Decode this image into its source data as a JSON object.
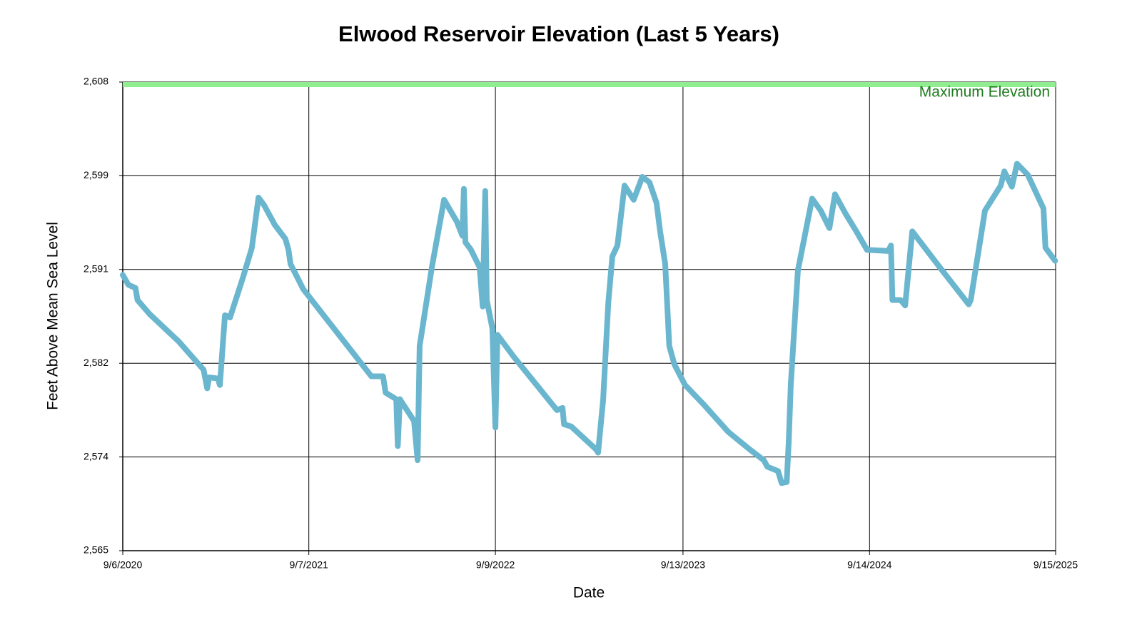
{
  "chart_data": {
    "type": "line",
    "title": "Elwood Reservoir Elevation (Last 5 Years)",
    "x_label": "Date",
    "y_label": "Feet Above Mean Sea Level",
    "xlim": [
      "9/6/2020",
      "9/15/2025"
    ],
    "xticks": [
      "9/6/2020",
      "9/7/2021",
      "9/9/2022",
      "9/13/2023",
      "9/14/2024",
      "9/15/2025"
    ],
    "ylim": [
      2565,
      2608
    ],
    "yticks": [
      {
        "value": 2565,
        "label": "2,565"
      },
      {
        "value": 2573.6,
        "label": "2,574"
      },
      {
        "value": 2582.2,
        "label": "2,582"
      },
      {
        "value": 2590.8,
        "label": "2,591"
      },
      {
        "value": 2599.4,
        "label": "2,599"
      },
      {
        "value": 2608,
        "label": "2,608"
      }
    ],
    "grid": true,
    "annotation": {
      "text": "Maximum Elevation",
      "value": 2608,
      "color": "#90ee90",
      "text_color": "#1e7b1e"
    },
    "x": [
      "9/6/2020",
      "9/17/2020",
      "10/1/2020",
      "10/5/2020",
      "10/29/2020",
      "12/25/2020",
      "2/12/2021",
      "2/19/2021",
      "2/23/2021",
      "3/12/2021",
      "3/16/2021",
      "3/26/2021",
      "4/5/2021",
      "4/30/2021",
      "5/18/2021",
      "5/31/2021",
      "6/11/2021",
      "7/2/2021",
      "7/23/2021",
      "7/29/2021",
      "8/2/2021",
      "8/27/2021",
      "10/1/2021",
      "1/8/2022",
      "1/31/2022",
      "2/5/2022",
      "2/26/2022",
      "3/1/2022",
      "3/5/2022",
      "4/2/2022",
      "4/9/2022",
      "4/13/2022",
      "5/7/2022",
      "5/31/2022",
      "6/25/2022",
      "7/6/2022",
      "7/9/2022",
      "7/12/2022",
      "7/23/2022",
      "8/9/2022",
      "8/15/2022",
      "8/20/2022",
      "8/23/2022",
      "9/3/2022",
      "9/9/2022",
      "9/13/2022",
      "10/15/2022",
      "1/8/2023",
      "1/19/2023",
      "1/22/2023",
      "2/5/2023",
      "3/26/2023",
      "3/30/2023",
      "4/9/2023",
      "4/19/2023",
      "4/27/2023",
      "5/7/2023",
      "5/21/2023",
      "6/8/2023",
      "6/25/2023",
      "7/9/2023",
      "7/23/2023",
      "7/30/2023",
      "8/9/2023",
      "8/17/2023",
      "8/27/2023",
      "9/17/2023",
      "10/22/2023",
      "12/11/2023",
      "1/22/2024",
      "2/19/2024",
      "2/26/2024",
      "3/18/2024",
      "3/25/2024",
      "4/4/2024",
      "4/8/2024",
      "4/12/2024",
      "4/26/2024",
      "5/24/2024",
      "6/10/2024",
      "6/27/2024",
      "7/8/2024",
      "7/29/2024",
      "8/19/2024",
      "9/9/2024",
      "10/21/2024",
      "10/26/2024",
      "10/29/2024",
      "11/14/2024",
      "11/23/2024",
      "12/7/2024",
      "2/4/2025",
      "3/28/2025",
      "4/1/2025",
      "4/29/2025",
      "5/30/2025",
      "6/6/2025",
      "6/21/2025",
      "7/1/2025",
      "7/22/2025",
      "8/12/2025",
      "8/22/2025",
      "8/26/2025",
      "9/14/2025"
    ],
    "series": [
      {
        "color": "#6bb6cf",
        "values": [
          2590.3,
          2589.4,
          2589.1,
          2588.0,
          2586.7,
          2584.2,
          2581.6,
          2579.9,
          2580.9,
          2580.8,
          2580.2,
          2586.6,
          2586.4,
          2590.0,
          2592.8,
          2597.4,
          2596.7,
          2594.9,
          2593.6,
          2592.6,
          2591.3,
          2589.0,
          2586.9,
          2581.0,
          2581.0,
          2579.5,
          2578.9,
          2574.6,
          2578.9,
          2576.9,
          2573.3,
          2583.8,
          2591.0,
          2597.2,
          2595.2,
          2593.9,
          2598.2,
          2593.3,
          2592.6,
          2591.0,
          2587.4,
          2598.0,
          2588.0,
          2585.4,
          2576.3,
          2584.8,
          2582.8,
          2577.9,
          2578.1,
          2576.6,
          2576.4,
          2574.3,
          2574.0,
          2578.9,
          2587.7,
          2592.0,
          2593.0,
          2598.5,
          2597.2,
          2599.3,
          2598.8,
          2596.9,
          2594.3,
          2591.3,
          2583.8,
          2582.1,
          2580.2,
          2578.5,
          2575.9,
          2574.3,
          2573.3,
          2572.7,
          2572.3,
          2571.2,
          2571.3,
          2575.0,
          2580.2,
          2590.7,
          2597.3,
          2596.2,
          2594.6,
          2597.7,
          2595.9,
          2594.3,
          2592.6,
          2592.5,
          2593.0,
          2588.0,
          2588.0,
          2587.5,
          2594.3,
          2590.7,
          2587.6,
          2588.0,
          2596.2,
          2598.5,
          2599.8,
          2598.4,
          2600.5,
          2599.5,
          2597.4,
          2596.4,
          2592.8,
          2591.6
        ]
      }
    ]
  }
}
